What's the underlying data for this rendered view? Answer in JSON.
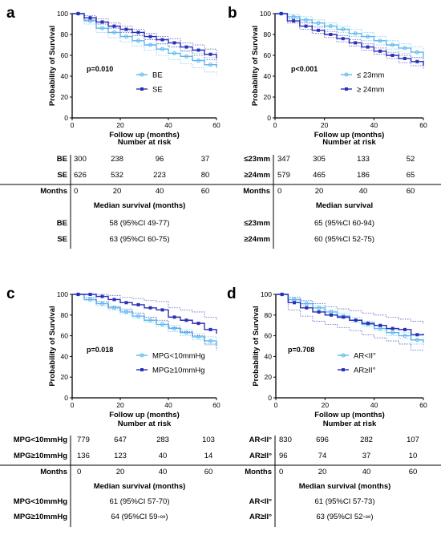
{
  "chart_data": [
    {
      "type": "line",
      "panel_label": "a",
      "ylabel": "Probability of Survival",
      "xlabel": "Follow up (months)",
      "xlim": [
        0,
        60
      ],
      "ylim": [
        0,
        100
      ],
      "xticks": [
        0,
        20,
        40,
        60
      ],
      "yticks": [
        0,
        20,
        40,
        60,
        80,
        100
      ],
      "annotation": "p=0.010",
      "legend_position": "center-right",
      "series": [
        {
          "name": "BE",
          "color": "#5bb8ee",
          "marker": "circle",
          "x": [
            0,
            5,
            10,
            15,
            20,
            25,
            30,
            35,
            40,
            45,
            50,
            55,
            60
          ],
          "y": [
            100,
            93,
            86,
            82,
            78,
            74,
            70,
            66,
            62,
            59,
            55,
            51,
            48
          ],
          "ci_lower": [
            100,
            90,
            82,
            77,
            73,
            69,
            65,
            60,
            56,
            52,
            48,
            44,
            41
          ],
          "ci_upper": [
            100,
            96,
            90,
            87,
            83,
            79,
            75,
            71,
            68,
            65,
            62,
            58,
            55
          ]
        },
        {
          "name": "SE",
          "color": "#2a2fb8",
          "marker": "square",
          "x": [
            0,
            5,
            10,
            15,
            20,
            25,
            30,
            35,
            40,
            45,
            50,
            55,
            60
          ],
          "y": [
            100,
            96,
            92,
            88,
            85,
            82,
            78,
            75,
            72,
            68,
            65,
            61,
            57
          ],
          "ci_lower": [
            100,
            94,
            90,
            86,
            82,
            79,
            75,
            71,
            68,
            64,
            60,
            56,
            51
          ],
          "ci_upper": [
            100,
            98,
            95,
            91,
            88,
            85,
            81,
            78,
            76,
            72,
            70,
            66,
            62
          ]
        }
      ],
      "risk_table": {
        "title": "Number at risk",
        "rows": [
          {
            "label": "BE",
            "values": [
              "300",
              "238",
              "96",
              "37"
            ]
          },
          {
            "label": "SE",
            "values": [
              "626",
              "532",
              "223",
              "80"
            ]
          }
        ],
        "axis_label": "Months",
        "axis_ticks": [
          "0",
          "20",
          "40",
          "60"
        ]
      },
      "median_table": {
        "title": "Median survival (months)",
        "rows": [
          {
            "label": "BE",
            "value": "58 (95%CI 49-77)"
          },
          {
            "label": "SE",
            "value": "63 (95%CI 60-75)"
          }
        ]
      }
    },
    {
      "type": "line",
      "panel_label": "b",
      "ylabel": "Probability of Survival",
      "xlabel": "Follow up (months)",
      "xlim": [
        0,
        60
      ],
      "ylim": [
        0,
        100
      ],
      "xticks": [
        0,
        20,
        40,
        60
      ],
      "yticks": [
        0,
        20,
        40,
        60,
        80,
        100
      ],
      "annotation": "p<0.001",
      "legend_position": "center-right",
      "series": [
        {
          "name": "≤ 23mm",
          "color": "#5bb8ee",
          "marker": "circle",
          "x": [
            0,
            5,
            10,
            15,
            20,
            25,
            30,
            35,
            40,
            45,
            50,
            55,
            60
          ],
          "y": [
            100,
            97,
            94,
            91,
            88,
            85,
            81,
            78,
            74,
            70,
            67,
            63,
            58
          ],
          "ci_lower": [
            100,
            95,
            92,
            88,
            85,
            82,
            78,
            74,
            70,
            66,
            62,
            57,
            52
          ],
          "ci_upper": [
            100,
            99,
            97,
            94,
            91,
            88,
            85,
            82,
            78,
            74,
            71,
            68,
            64
          ]
        },
        {
          "name": "≥ 24mm",
          "color": "#2a2fb8",
          "marker": "square",
          "x": [
            0,
            5,
            10,
            15,
            20,
            25,
            30,
            35,
            40,
            45,
            50,
            55,
            60
          ],
          "y": [
            100,
            93,
            88,
            84,
            80,
            76,
            72,
            68,
            64,
            60,
            57,
            54,
            50
          ],
          "ci_lower": [
            100,
            91,
            85,
            81,
            77,
            73,
            69,
            65,
            61,
            57,
            53,
            50,
            46
          ],
          "ci_upper": [
            100,
            95,
            91,
            87,
            83,
            79,
            75,
            71,
            67,
            63,
            60,
            58,
            55
          ]
        }
      ],
      "risk_table": {
        "title": "Number at risk",
        "rows": [
          {
            "label": "≤23mm",
            "values": [
              "347",
              "305",
              "133",
              "52"
            ]
          },
          {
            "label": "≥24mm",
            "values": [
              "579",
              "465",
              "186",
              "65"
            ]
          }
        ],
        "axis_label": "Months",
        "axis_ticks": [
          "0",
          "20",
          "40",
          "60"
        ]
      },
      "median_table": {
        "title": "Median survival",
        "rows": [
          {
            "label": "≤23mm",
            "value": "65 (95%CI 60-94)"
          },
          {
            "label": "≥24mm",
            "value": "60 (95%CI 52-75)"
          }
        ]
      }
    },
    {
      "type": "line",
      "panel_label": "c",
      "ylabel": "Probability of Survival",
      "xlabel": "Follow up (months)",
      "xlim": [
        0,
        60
      ],
      "ylim": [
        0,
        100
      ],
      "xticks": [
        0,
        20,
        40,
        60
      ],
      "yticks": [
        0,
        20,
        40,
        60,
        80,
        100
      ],
      "annotation": "p=0.018",
      "legend_position": "center-right",
      "series": [
        {
          "name": "MPG<10mmHg",
          "color": "#5bb8ee",
          "marker": "circle",
          "x": [
            0,
            5,
            10,
            15,
            20,
            25,
            30,
            35,
            40,
            45,
            50,
            55,
            60
          ],
          "y": [
            100,
            95,
            91,
            87,
            83,
            79,
            75,
            71,
            67,
            63,
            59,
            55,
            51
          ],
          "ci_lower": [
            100,
            94,
            89,
            85,
            81,
            77,
            73,
            69,
            64,
            60,
            56,
            51,
            46
          ],
          "ci_upper": [
            100,
            97,
            93,
            89,
            86,
            82,
            78,
            74,
            70,
            66,
            62,
            59,
            56
          ]
        },
        {
          "name": "MPG≥10mmHg",
          "color": "#2a2fb8",
          "marker": "square",
          "x": [
            0,
            5,
            10,
            15,
            20,
            25,
            30,
            35,
            40,
            45,
            50,
            55,
            60
          ],
          "y": [
            100,
            100,
            98,
            95,
            92,
            90,
            87,
            85,
            78,
            75,
            72,
            66,
            62
          ],
          "ci_lower": [
            100,
            97,
            93,
            88,
            85,
            82,
            78,
            75,
            68,
            64,
            60,
            52,
            46
          ],
          "ci_upper": [
            100,
            100,
            100,
            99,
            97,
            96,
            94,
            93,
            87,
            85,
            83,
            78,
            75
          ]
        }
      ],
      "risk_table": {
        "title": "Number at risk",
        "rows": [
          {
            "label": "MPG<10mmHg",
            "values": [
              "779",
              "647",
              "283",
              "103"
            ]
          },
          {
            "label": "MPG≥10mmHg",
            "values": [
              "136",
              "123",
              "40",
              "14"
            ]
          }
        ],
        "axis_label": "Months",
        "axis_ticks": [
          "0",
          "20",
          "40",
          "60"
        ]
      },
      "median_table": {
        "title": "Median survival (months)",
        "rows": [
          {
            "label": "MPG<10mmHg",
            "value": "61 (95%CI 57-70)"
          },
          {
            "label": "MPG≥10mmHg",
            "value": "64 (95%CI 59-∞)"
          }
        ]
      }
    },
    {
      "type": "line",
      "panel_label": "d",
      "ylabel": "Probability of Survival",
      "xlabel": "Follow up (months)",
      "xlim": [
        0,
        60
      ],
      "ylim": [
        0,
        100
      ],
      "xticks": [
        0,
        20,
        40,
        60
      ],
      "yticks": [
        0,
        20,
        40,
        60,
        80,
        100
      ],
      "annotation": "p=0.708",
      "legend_position": "center-right",
      "series": [
        {
          "name": "AR<II°",
          "color": "#5bb8ee",
          "marker": "circle",
          "x": [
            0,
            5,
            10,
            15,
            20,
            25,
            30,
            35,
            40,
            45,
            50,
            55,
            60
          ],
          "y": [
            100,
            95,
            91,
            87,
            83,
            79,
            75,
            71,
            67,
            63,
            60,
            56,
            53
          ],
          "ci_lower": [
            100,
            94,
            89,
            85,
            81,
            77,
            73,
            69,
            65,
            60,
            57,
            52,
            49
          ],
          "ci_upper": [
            100,
            97,
            93,
            89,
            85,
            82,
            78,
            74,
            70,
            66,
            63,
            60,
            57
          ]
        },
        {
          "name": "AR≥II°",
          "color": "#2a2fb8",
          "marker": "square",
          "x": [
            0,
            5,
            10,
            15,
            20,
            25,
            30,
            35,
            40,
            45,
            50,
            55,
            60
          ],
          "y": [
            100,
            92,
            87,
            83,
            80,
            78,
            75,
            72,
            70,
            67,
            66,
            61,
            62
          ],
          "ci_lower": [
            100,
            85,
            79,
            74,
            71,
            68,
            65,
            61,
            58,
            55,
            52,
            46,
            45
          ],
          "ci_upper": [
            100,
            97,
            94,
            91,
            88,
            86,
            84,
            82,
            80,
            78,
            76,
            74,
            72
          ]
        }
      ],
      "risk_table": {
        "title": "Number at risk",
        "rows": [
          {
            "label": "AR<II°",
            "values": [
              "830",
              "696",
              "282",
              "107"
            ]
          },
          {
            "label": "AR≥II°",
            "values": [
              "96",
              "74",
              "37",
              "10"
            ]
          }
        ],
        "axis_label": "Months",
        "axis_ticks": [
          "0",
          "20",
          "40",
          "60"
        ]
      },
      "median_table": {
        "title": "Median survival (months)",
        "rows": [
          {
            "label": "AR<II°",
            "value": "61 (95%CI 57-73)"
          },
          {
            "label": "AR≥II°",
            "value": "63 (95%CI 52-∞)"
          }
        ]
      }
    }
  ]
}
